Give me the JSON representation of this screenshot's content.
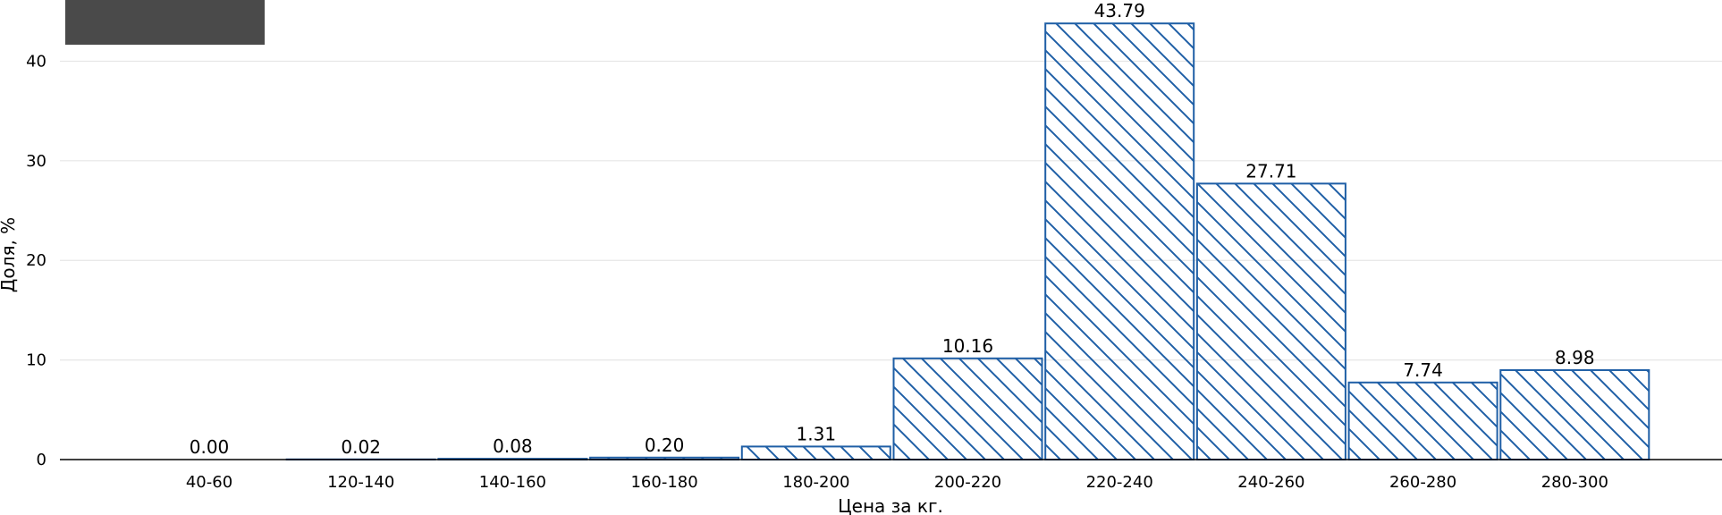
{
  "chart_data": {
    "type": "bar",
    "title": "",
    "xlabel": "Цена за кг.",
    "ylabel": "Доля, %",
    "categories": [
      "40-60",
      "120-140",
      "140-160",
      "160-180",
      "180-200",
      "200-220",
      "220-240",
      "240-260",
      "260-280",
      "280-300"
    ],
    "values": [
      0.0,
      0.02,
      0.08,
      0.2,
      1.31,
      10.16,
      43.79,
      27.71,
      7.74,
      8.98
    ],
    "value_labels": [
      "0.00",
      "0.02",
      "0.08",
      "0.20",
      "1.31",
      "10.16",
      "43.79",
      "27.71",
      "7.74",
      "8.98"
    ],
    "ylim": [
      0,
      46
    ],
    "yticks": [
      "0",
      "10",
      "20",
      "30",
      "40"
    ],
    "grid": true,
    "bar_style": "hatched",
    "colors": {
      "bar_edge": "#1f5fa6",
      "grid": "#e6e6e6",
      "axis": "#000000",
      "overlay_box": "#4a4a4a"
    }
  }
}
